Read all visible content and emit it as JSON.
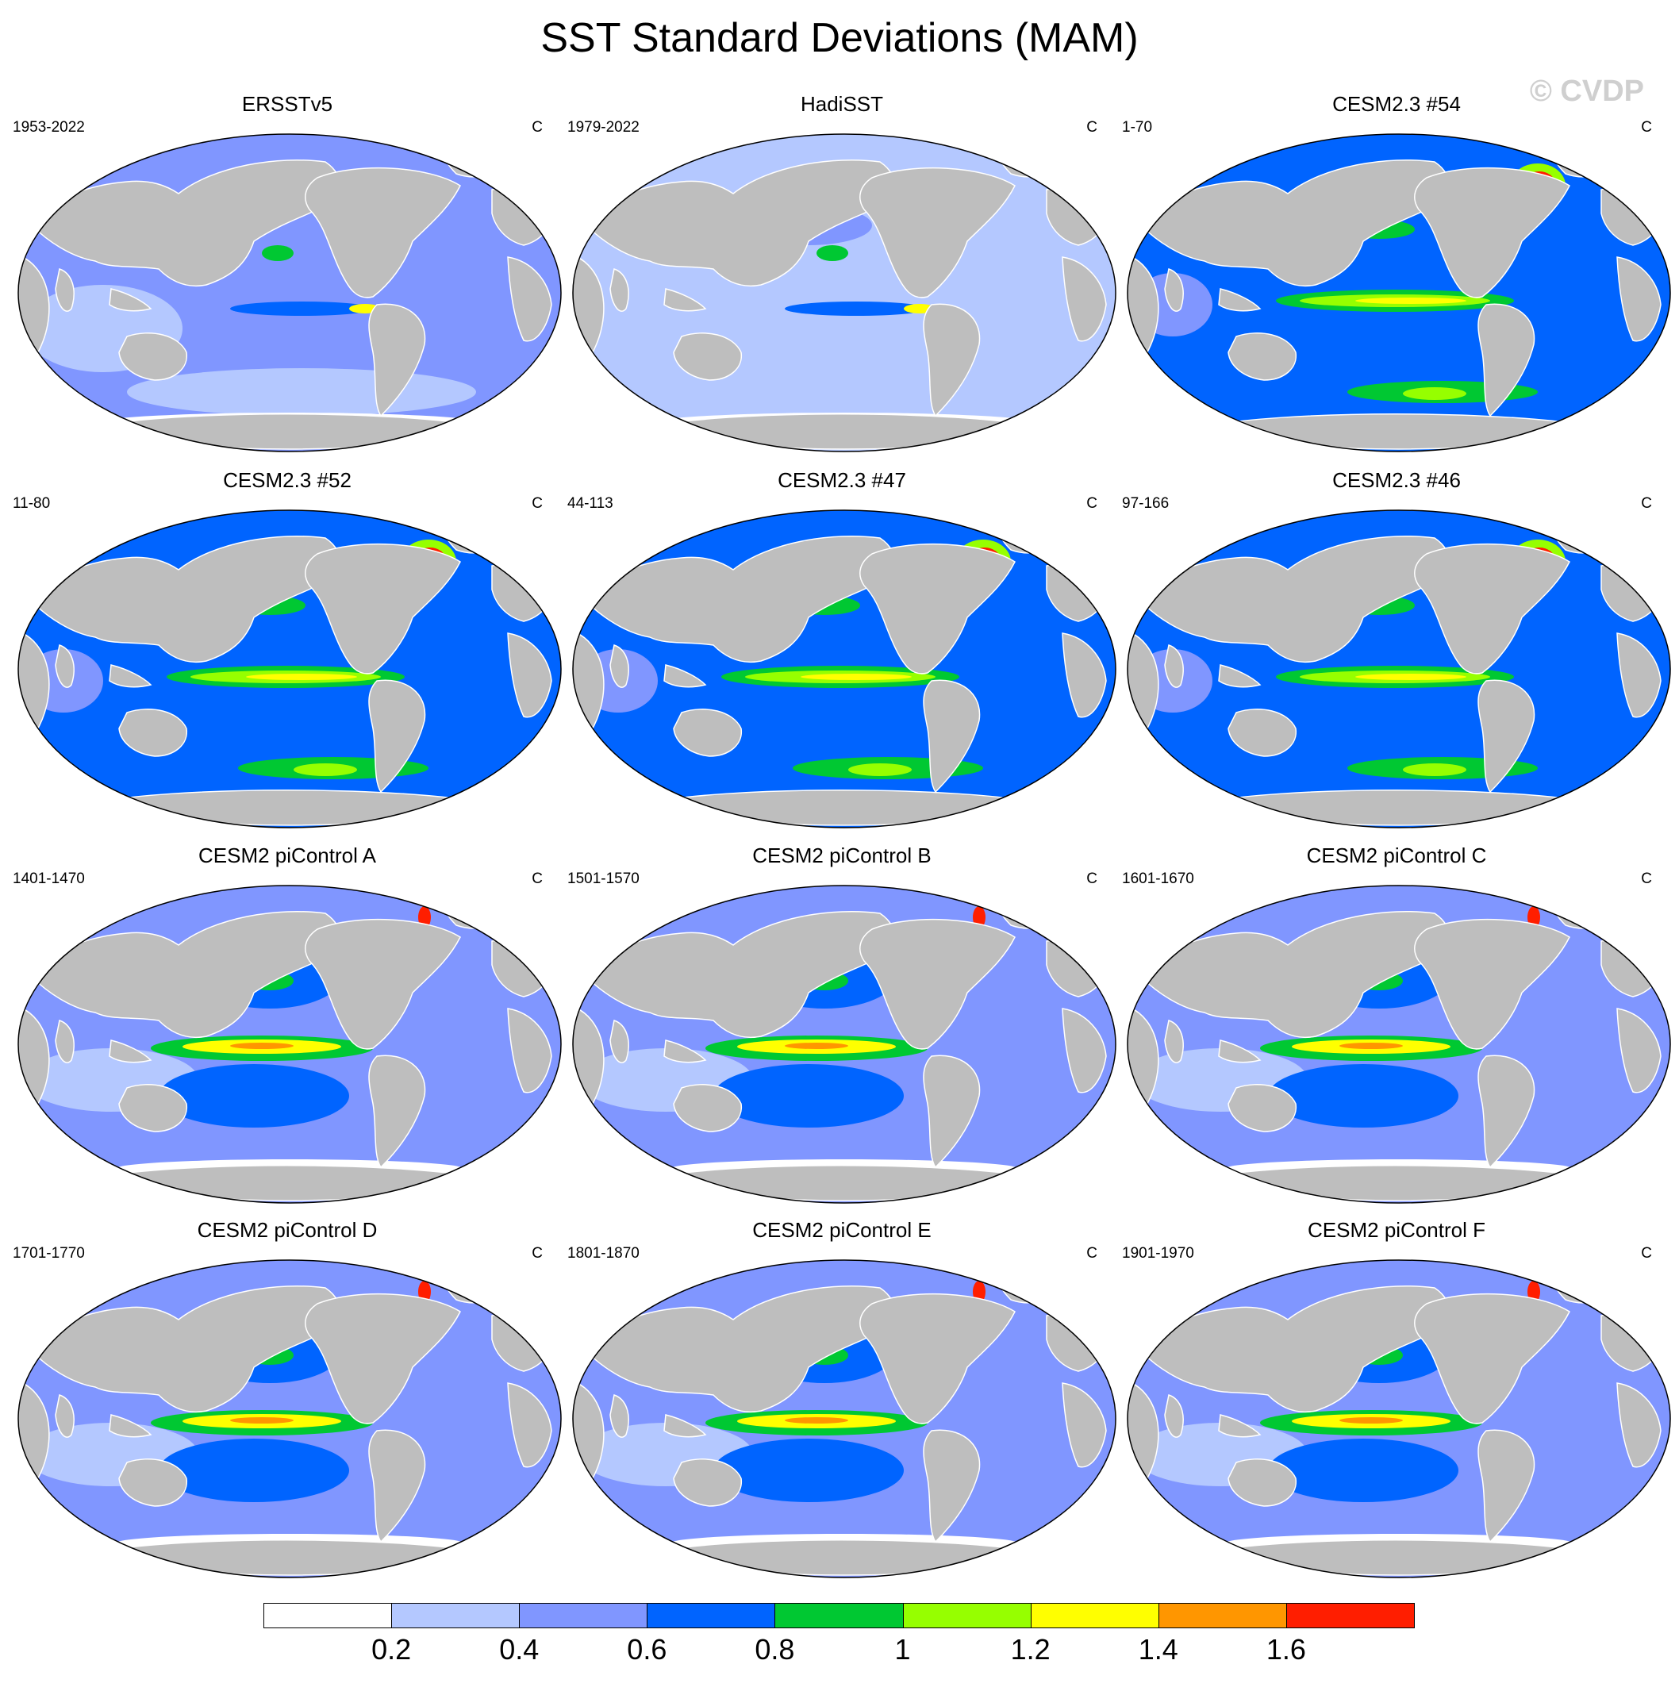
{
  "title": "SST Standard Deviations (MAM)",
  "watermark": "© CVDP",
  "panels": [
    {
      "name": "ERSSTv5",
      "years": "1953-2022",
      "units": "C",
      "style": "obs1"
    },
    {
      "name": "HadiSST",
      "years": "1979-2022",
      "units": "C",
      "style": "obs2"
    },
    {
      "name": "CESM2.3 #54",
      "years": "1-70",
      "units": "C",
      "style": "strong"
    },
    {
      "name": "CESM2.3 #52",
      "years": "11-80",
      "units": "C",
      "style": "strong"
    },
    {
      "name": "CESM2.3 #47",
      "years": "44-113",
      "units": "C",
      "style": "strong"
    },
    {
      "name": "CESM2.3 #46",
      "years": "97-166",
      "units": "C",
      "style": "strong"
    },
    {
      "name": "CESM2 piControl A",
      "years": "1401-1470",
      "units": "C",
      "style": "pi"
    },
    {
      "name": "CESM2 piControl B",
      "years": "1501-1570",
      "units": "C",
      "style": "pi"
    },
    {
      "name": "CESM2 piControl C",
      "years": "1601-1670",
      "units": "C",
      "style": "pi"
    },
    {
      "name": "CESM2 piControl D",
      "years": "1701-1770",
      "units": "C",
      "style": "pi"
    },
    {
      "name": "CESM2 piControl E",
      "years": "1801-1870",
      "units": "C",
      "style": "pi"
    },
    {
      "name": "CESM2 piControl F",
      "years": "1901-1970",
      "units": "C",
      "style": "pi"
    }
  ],
  "colorbar": {
    "levels": [
      "0.2",
      "0.4",
      "0.6",
      "0.8",
      "1",
      "1.2",
      "1.4",
      "1.6"
    ],
    "colors": [
      "#ffffff",
      "#b4c8ff",
      "#8096ff",
      "#0064ff",
      "#00c832",
      "#96ff00",
      "#ffff00",
      "#ff9600",
      "#ff1e00"
    ]
  },
  "colors": {
    "land": "#bebebe",
    "ocean_low": "#b4c8ff",
    "ocean_mid": "#8096ff",
    "ocean_high": "#0064ff"
  }
}
